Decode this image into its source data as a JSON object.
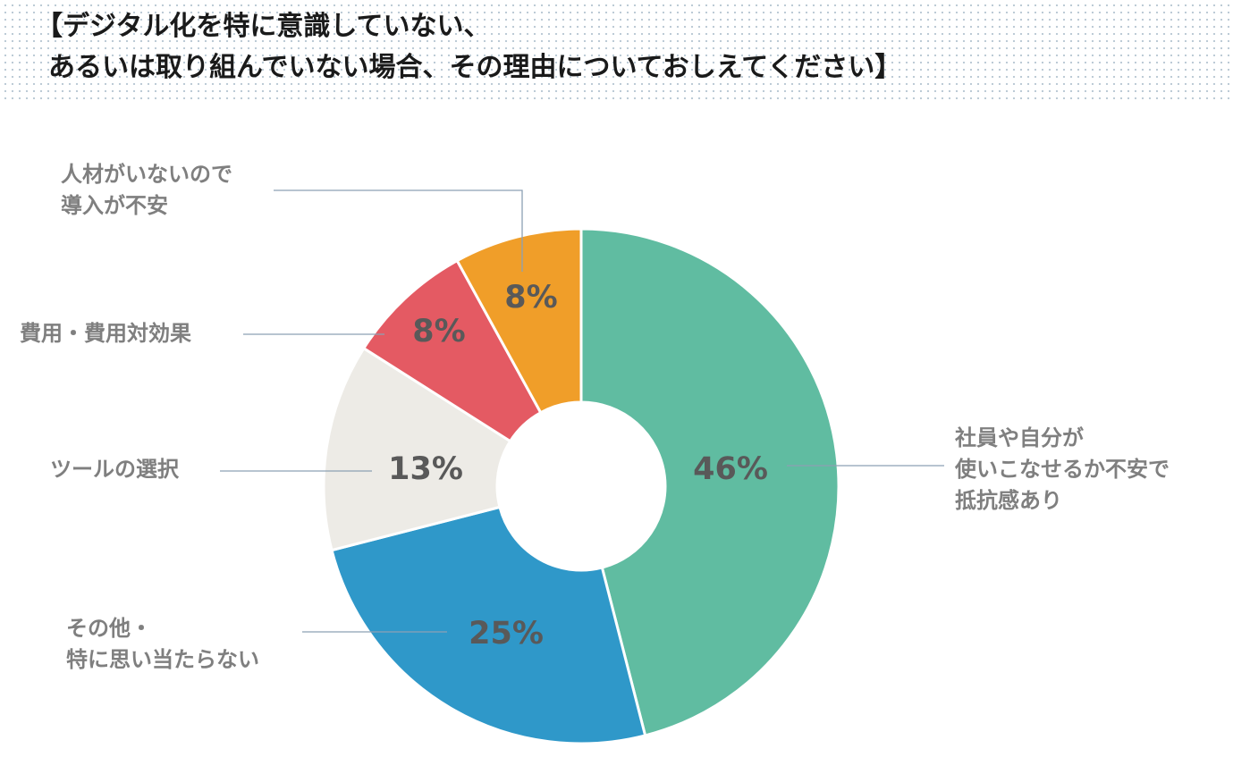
{
  "title": {
    "line1": "【デジタル化を特に意識していない、",
    "line2": "あるいは取り組んでいない場合、その理由についておしえてください】"
  },
  "chart_data": {
    "type": "donut",
    "title": "【デジタル化を特に意識していない、あるいは取り組んでいない場合、その理由についておしえてください】",
    "slices": [
      {
        "label_lines": [
          "社員や自分が",
          "使いこなせるか不安で",
          "抵抗感あり"
        ],
        "value": 46,
        "value_label": "46%",
        "color": "#60bca1"
      },
      {
        "label_lines": [
          "その他・",
          "特に思い当たらない"
        ],
        "value": 25,
        "value_label": "25%",
        "color": "#2f98c9"
      },
      {
        "label_lines": [
          "ツールの選択"
        ],
        "value": 13,
        "value_label": "13%",
        "color": "#edebe6"
      },
      {
        "label_lines": [
          "費用・費用対効果"
        ],
        "value": 8,
        "value_label": "8%",
        "color": "#e45a63"
      },
      {
        "label_lines": [
          "人材がいないので",
          "導入が不安"
        ],
        "value": 8,
        "value_label": "8%",
        "color": "#f09e29"
      }
    ],
    "start": "12 o'clock",
    "direction": "clockwise",
    "legend": "none",
    "leader_line_color": "#8ca0b4",
    "separator_color": "#ffffff"
  }
}
